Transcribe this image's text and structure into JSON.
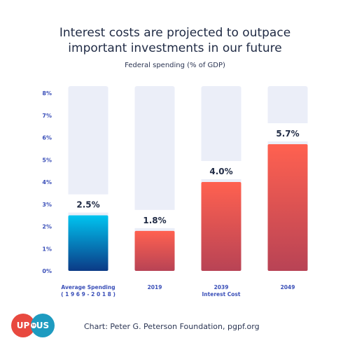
{
  "title_line1": "Interest costs are projected to outpace",
  "title_line2": "important investments in our future",
  "subtitle": "Federal spending (% of GDP)",
  "footer": "Chart: Peter G. Peterson Foundation, pgpf.org",
  "logo": {
    "left": "UP",
    "mid": "to",
    "right": "US"
  },
  "chart_data": {
    "type": "bar",
    "title": "Interest costs are projected to outpace important investments in our future",
    "ylabel": "Federal spending (% of GDP)",
    "ylim": [
      0,
      8
    ],
    "yticks": [
      "0%",
      "1%",
      "2%",
      "3%",
      "4%",
      "5%",
      "6%",
      "7%",
      "8%"
    ],
    "categories": [
      [
        "Average Spending",
        "( 1 9 6 9 - 2 0 1 8 )"
      ],
      [
        "2019"
      ],
      [
        "2039",
        "Interest Cost"
      ],
      [
        "2049"
      ]
    ],
    "values": [
      2.5,
      1.8,
      4.0,
      5.7
    ],
    "labels": [
      "2.5%",
      "1.8%",
      "4.0%",
      "5.7%"
    ],
    "colors": {
      "first_top": "#00c4f0",
      "first_bottom": "#0b3a86",
      "other_top": "#ff6150",
      "other_bottom": "#b84355",
      "background_bar": "#ebeef8",
      "tick_text": "#3a4fb8",
      "value_text": "#1f2a44"
    }
  }
}
